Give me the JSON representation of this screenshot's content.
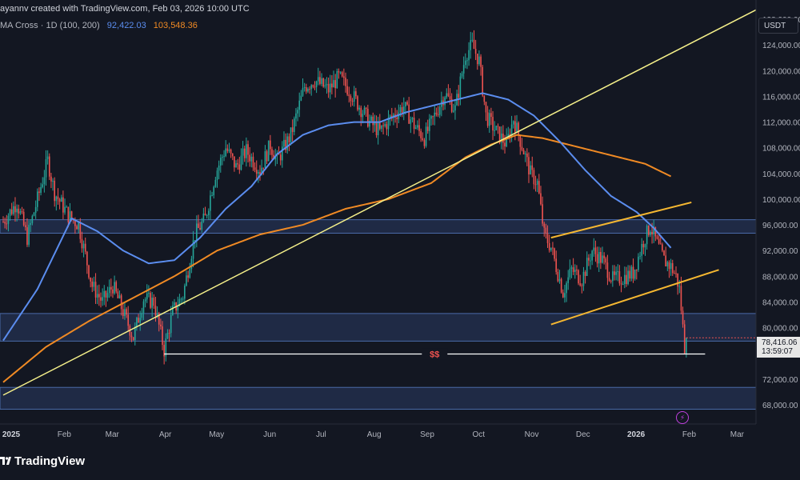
{
  "header": {
    "caption": "ayannv created with TradingView.com, Feb 03, 2026 10:00 UTC",
    "indicator_label": "MA Cross · 1D (100, 200)",
    "ma100_value": "92,422.03",
    "ma200_value": "103,548.36"
  },
  "currency": "USDT",
  "price_tag": {
    "price": "78,416.06",
    "countdown": "13:59:07"
  },
  "brand": "TradingView",
  "event_icon": "lightning-icon",
  "colors": {
    "background": "#131722",
    "up": "#26a69a",
    "down": "#ef5350",
    "ma100": "#5b8def",
    "ma200": "#f08a24",
    "trendline": "#f5f08a",
    "channel": "#f5b731",
    "zone": "#2a3b62",
    "liquidity_label": "#ef5350"
  },
  "chart_data": {
    "type": "candlestick",
    "x_tick_labels": [
      "2025",
      "Feb",
      "Mar",
      "Apr",
      "May",
      "Jun",
      "Jul",
      "Aug",
      "Sep",
      "Oct",
      "Nov",
      "Dec",
      "2026",
      "Feb",
      "Mar"
    ],
    "y_tick_labels": [
      "128,000.00",
      "124,000.00",
      "120,000.00",
      "116,000.00",
      "112,000.00",
      "108,000.00",
      "104,000.00",
      "100,000.00",
      "96,000.00",
      "92,000.00",
      "88,000.00",
      "84,000.00",
      "80,000.00",
      "76,000.00",
      "72,000.00",
      "68,000.00"
    ],
    "ylim": [
      65000,
      131000
    ],
    "price_path": [
      [
        0,
        96500
      ],
      [
        8,
        99500
      ],
      [
        14,
        94000
      ],
      [
        22,
        102000
      ],
      [
        26,
        106000
      ],
      [
        30,
        101000
      ],
      [
        38,
        97500
      ],
      [
        44,
        96000
      ],
      [
        52,
        86500
      ],
      [
        58,
        84000
      ],
      [
        64,
        86500
      ],
      [
        70,
        82500
      ],
      [
        76,
        78500
      ],
      [
        82,
        84500
      ],
      [
        88,
        84000
      ],
      [
        94,
        76500
      ],
      [
        99,
        82500
      ],
      [
        105,
        85000
      ],
      [
        112,
        94500
      ],
      [
        118,
        97000
      ],
      [
        124,
        104000
      ],
      [
        130,
        108000
      ],
      [
        136,
        105000
      ],
      [
        142,
        107500
      ],
      [
        150,
        104500
      ],
      [
        156,
        108500
      ],
      [
        160,
        106000
      ],
      [
        168,
        110000
      ],
      [
        176,
        117500
      ],
      [
        182,
        118500
      ],
      [
        190,
        117000
      ],
      [
        196,
        119000
      ],
      [
        202,
        117000
      ],
      [
        208,
        114500
      ],
      [
        214,
        112000
      ],
      [
        220,
        110500
      ],
      [
        226,
        112500
      ],
      [
        234,
        114500
      ],
      [
        240,
        111500
      ],
      [
        246,
        109500
      ],
      [
        252,
        113000
      ],
      [
        258,
        116500
      ],
      [
        264,
        114000
      ],
      [
        270,
        122500
      ],
      [
        274,
        124000
      ],
      [
        278,
        121500
      ],
      [
        282,
        113000
      ],
      [
        288,
        110500
      ],
      [
        294,
        108500
      ],
      [
        298,
        112500
      ],
      [
        304,
        107500
      ],
      [
        308,
        104000
      ],
      [
        312,
        102500
      ],
      [
        316,
        94500
      ],
      [
        320,
        92500
      ],
      [
        324,
        88500
      ],
      [
        327,
        85500
      ],
      [
        332,
        89000
      ],
      [
        338,
        87500
      ],
      [
        344,
        92000
      ],
      [
        350,
        90500
      ],
      [
        356,
        87500
      ],
      [
        362,
        87800
      ],
      [
        368,
        88500
      ],
      [
        374,
        93500
      ],
      [
        378,
        95800
      ],
      [
        382,
        93000
      ],
      [
        386,
        90500
      ],
      [
        390,
        89500
      ],
      [
        393,
        88000
      ],
      [
        395,
        86000
      ],
      [
        397,
        80000
      ],
      [
        398,
        77000
      ],
      [
        399,
        78400
      ]
    ],
    "ma100_path": [
      [
        0,
        78000
      ],
      [
        20,
        86000
      ],
      [
        40,
        97000
      ],
      [
        55,
        95000
      ],
      [
        70,
        92000
      ],
      [
        85,
        90000
      ],
      [
        100,
        90500
      ],
      [
        115,
        94000
      ],
      [
        130,
        98500
      ],
      [
        145,
        102000
      ],
      [
        160,
        107000
      ],
      [
        175,
        110000
      ],
      [
        190,
        111500
      ],
      [
        205,
        112000
      ],
      [
        220,
        112000
      ],
      [
        235,
        113500
      ],
      [
        250,
        114500
      ],
      [
        265,
        115500
      ],
      [
        280,
        116500
      ],
      [
        295,
        115500
      ],
      [
        310,
        113000
      ],
      [
        325,
        109000
      ],
      [
        340,
        104500
      ],
      [
        355,
        100500
      ],
      [
        370,
        98000
      ],
      [
        380,
        95500
      ],
      [
        390,
        92422
      ]
    ],
    "ma200_path": [
      [
        0,
        71500
      ],
      [
        25,
        77000
      ],
      [
        50,
        81000
      ],
      [
        75,
        84500
      ],
      [
        100,
        88000
      ],
      [
        125,
        92000
      ],
      [
        150,
        94500
      ],
      [
        175,
        96000
      ],
      [
        200,
        98500
      ],
      [
        225,
        100000
      ],
      [
        250,
        102500
      ],
      [
        270,
        106500
      ],
      [
        285,
        108500
      ],
      [
        300,
        110000
      ],
      [
        315,
        109500
      ],
      [
        330,
        108500
      ],
      [
        345,
        107500
      ],
      [
        360,
        106500
      ],
      [
        375,
        105500
      ],
      [
        390,
        103548
      ]
    ],
    "trendline": [
      [
        0,
        69500
      ],
      [
        440,
        129500
      ]
    ],
    "channel_upper": [
      [
        320,
        94000
      ],
      [
        402,
        99500
      ]
    ],
    "channel_lower": [
      [
        320,
        80500
      ],
      [
        418,
        89000
      ]
    ],
    "zones": [
      [
        94700,
        96800
      ],
      [
        77900,
        82200
      ],
      [
        67300,
        70700
      ]
    ],
    "liquidity_level": 75900,
    "liquidity_label": "$$",
    "last_price": 78416.06
  }
}
